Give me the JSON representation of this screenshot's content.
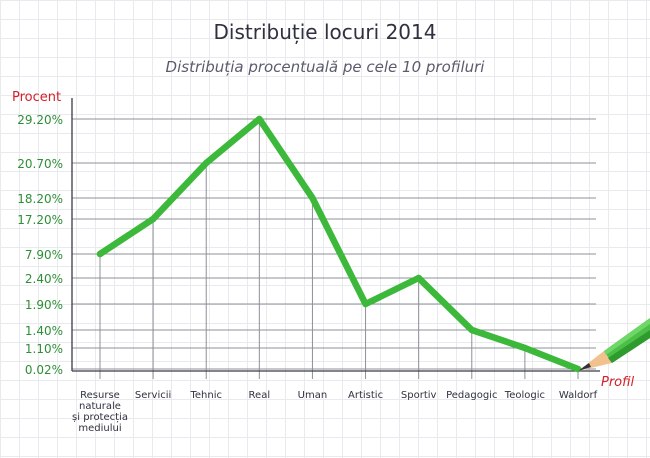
{
  "chart_data": {
    "type": "line",
    "title": "Distribuție locuri 2014",
    "subtitle": "Distribuția procentuală pe cele 10 profiluri",
    "ylabel": "Procent",
    "xlabel": "Profil",
    "categories": [
      [
        "Resurse",
        "naturale",
        "și protecția",
        "mediului"
      ],
      [
        "Servicii"
      ],
      [
        "Tehnic"
      ],
      [
        "Real"
      ],
      [
        "Uman"
      ],
      [
        "Artistic"
      ],
      [
        "Sportiv"
      ],
      [
        "Pedagogic"
      ],
      [
        "Teologic"
      ],
      [
        "Waldorf"
      ]
    ],
    "category_names": [
      "Resurse naturale și protecția mediului",
      "Servicii",
      "Tehnic",
      "Real",
      "Uman",
      "Artistic",
      "Sportiv",
      "Pedagogic",
      "Teologic",
      "Waldorf"
    ],
    "ytick_labels": [
      "29.20%",
      "20.70%",
      "18.20%",
      "17.20%",
      "7.90%",
      "2.40%",
      "1.90%",
      "1.40%",
      "1.10%",
      "0.02%"
    ],
    "series": [
      {
        "values": [
          7.9,
          17.2,
          20.7,
          29.2,
          18.2,
          1.9,
          2.4,
          1.4,
          1.1,
          0.02
        ]
      }
    ],
    "grid": true,
    "colors": {
      "line": "#3cb83a",
      "axis_label": "#d4202a",
      "tick_label": "#2e8f36",
      "category_label": "#2f3140"
    }
  }
}
